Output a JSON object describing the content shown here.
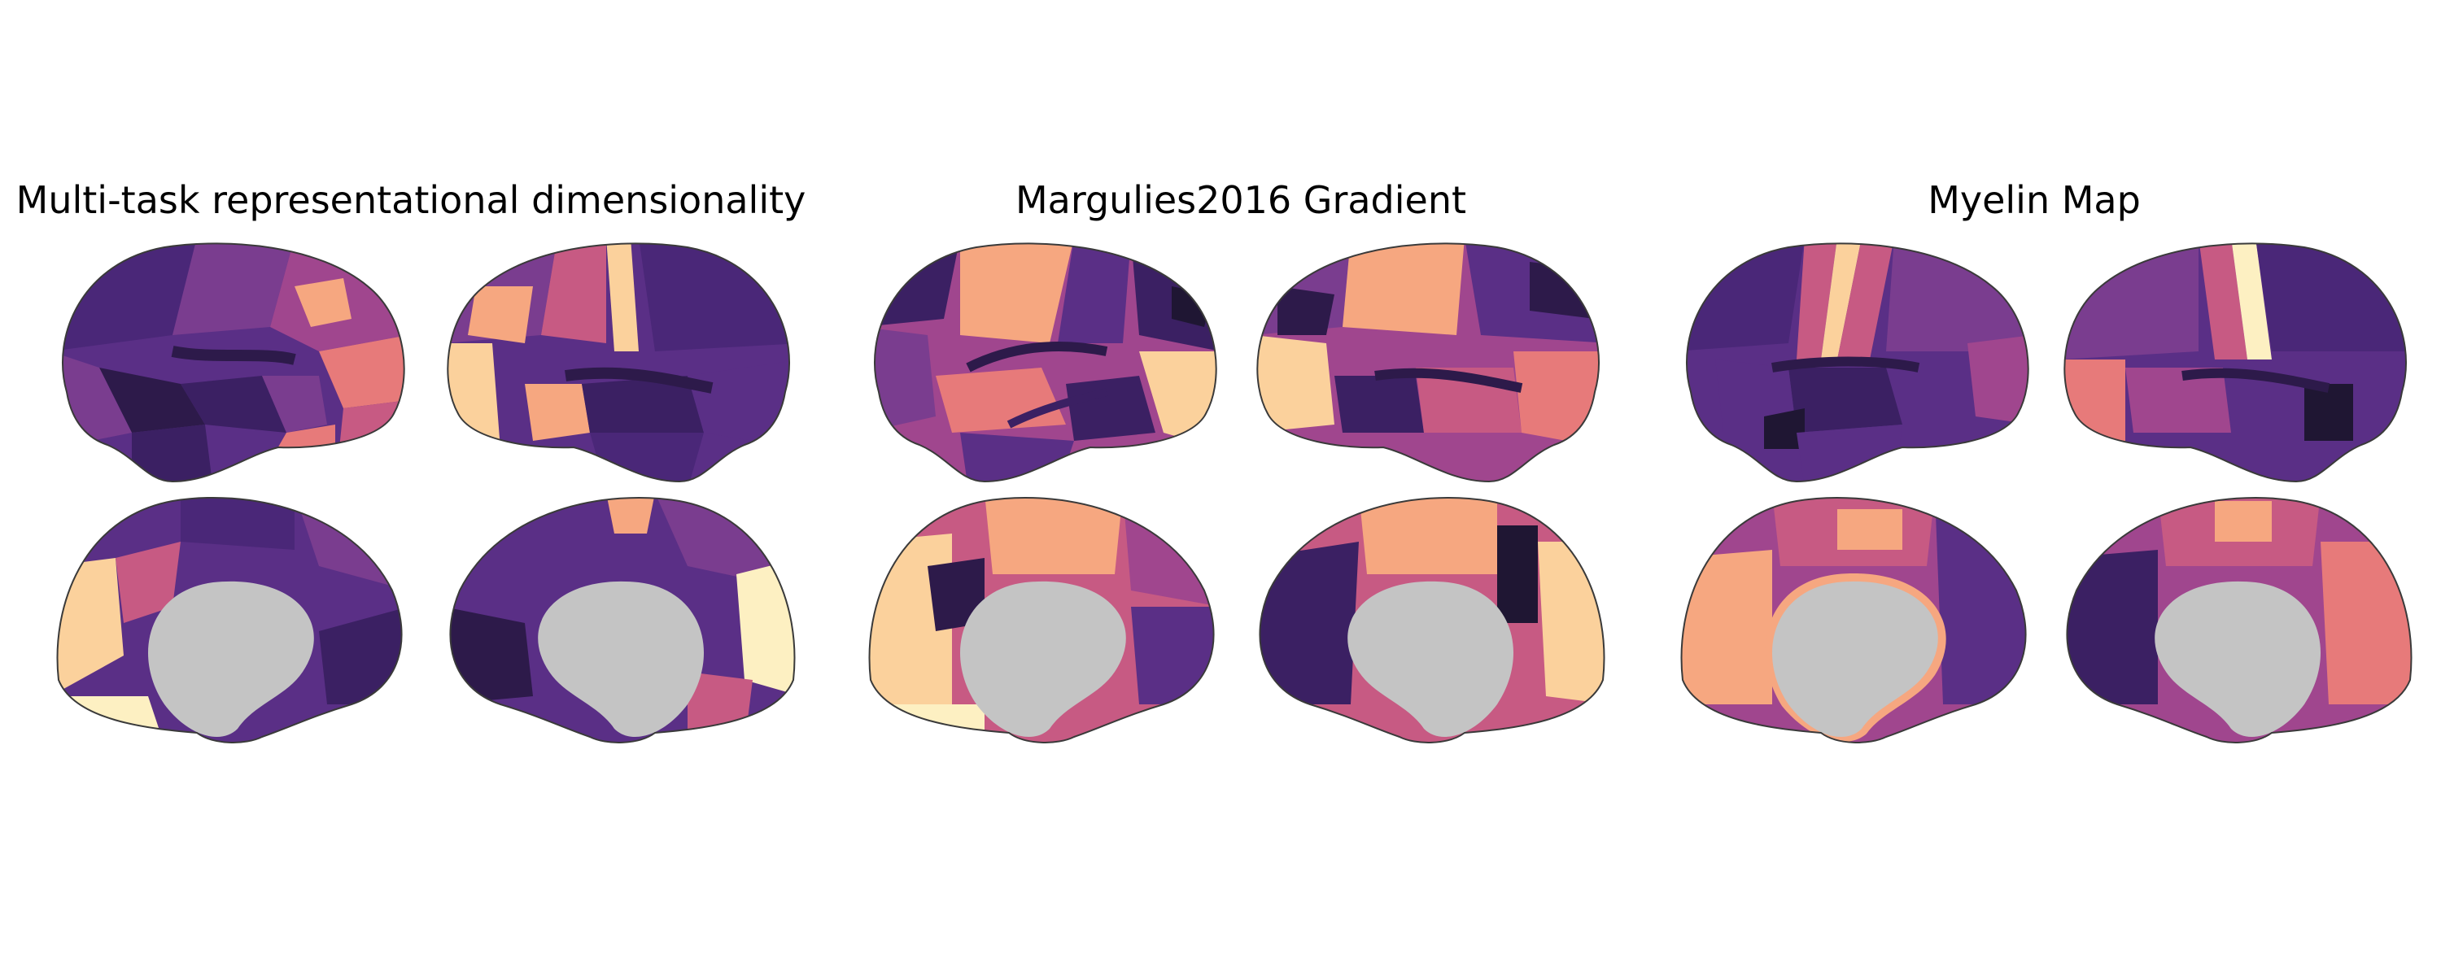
{
  "figure": {
    "panels": [
      {
        "title": "Multi-task representational dimensionality"
      },
      {
        "title": "Margulies2016 Gradient"
      },
      {
        "title": "Myelin Map"
      }
    ],
    "views": [
      "lateral-left",
      "lateral-right",
      "medial-left",
      "medial-right"
    ],
    "colormap": [
      "#1f1633",
      "#3b2063",
      "#5a2f86",
      "#7a3d8f",
      "#a0468e",
      "#c75a83",
      "#e77a7a",
      "#f6a780",
      "#fbd19c",
      "#fdf0c2"
    ],
    "medial_wall_color": "#c4c4c4",
    "outline_color": "#3a3a3a"
  }
}
